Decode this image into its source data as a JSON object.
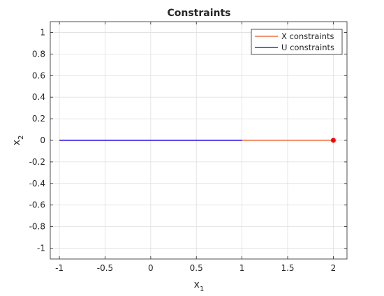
{
  "chart_data": {
    "type": "line",
    "title": "Constraints",
    "xlabel": {
      "base": "x",
      "sub": "1"
    },
    "ylabel": {
      "base": "x",
      "sub": "2"
    },
    "xlim": [
      -1.1,
      2.15
    ],
    "ylim": [
      -1.1,
      1.1
    ],
    "xticks": [
      -1,
      -0.5,
      0,
      0.5,
      1,
      1.5,
      2
    ],
    "xtick_labels": [
      "-1",
      "-0.5",
      "0",
      "0.5",
      "1",
      "1.5",
      "2"
    ],
    "yticks": [
      1,
      0.8,
      0.6,
      0.4,
      0.2,
      0,
      -0.2,
      -0.4,
      -0.6,
      -0.8,
      -1
    ],
    "ytick_labels": [
      "1",
      "0.8",
      "0.6",
      "0.4",
      "0.2",
      "0",
      "-0.2",
      "-0.4",
      "-0.6",
      "-0.8",
      "-1"
    ],
    "grid": true,
    "legend_position": "top-right",
    "series": [
      {
        "name": "X constraints",
        "color": "#e8541e",
        "x": [
          -1,
          2
        ],
        "y": [
          0,
          0
        ]
      },
      {
        "name": "U constraints",
        "color": "#0000ff",
        "x": [
          -1,
          1
        ],
        "y": [
          0,
          0
        ]
      }
    ],
    "points": [
      {
        "x": 2,
        "y": 0,
        "color": "#ff0000"
      }
    ]
  }
}
